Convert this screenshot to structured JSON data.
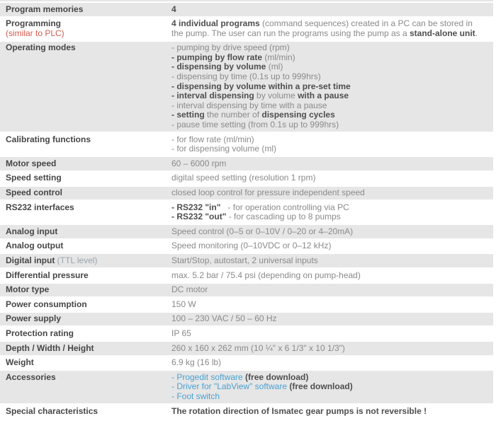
{
  "colors": {
    "shaded_row_bg": "#e6e6e6",
    "label_text": "#464646",
    "value_text": "#8a8a8a",
    "value_bold_text": "#4e4e4e",
    "red_note": "#dc5a4e",
    "teal_note": "#97a5ad",
    "link": "#4aa1d2"
  },
  "table": {
    "rows": [
      {
        "label": [
          [
            {
              "t": "Program memories"
            }
          ]
        ],
        "value": [
          [
            {
              "t": "4",
              "b": true
            }
          ]
        ]
      },
      {
        "label": [
          [
            {
              "t": "Programming"
            }
          ],
          [
            {
              "t": "(similar to PLC)",
              "c": "red"
            }
          ]
        ],
        "value": [
          [
            {
              "t": "4 individual programs",
              "b": true
            },
            {
              "t": " (command sequences) created in a PC can be stored in the pump. The user can run the programs using the pump as a "
            },
            {
              "t": "stand-alone unit",
              "b": true
            },
            {
              "t": "."
            }
          ]
        ]
      },
      {
        "label": [
          [
            {
              "t": "Operating modes"
            }
          ]
        ],
        "value": [
          [
            {
              "t": "- pumping by drive speed (rpm)"
            }
          ],
          [
            {
              "t": "- pumping by flow rate",
              "b": true
            },
            {
              "t": " (ml/min)"
            }
          ],
          [
            {
              "t": "- dispensing by volume",
              "b": true
            },
            {
              "t": " (ml)"
            }
          ],
          [
            {
              "t": "- dispensing by time (0.1s up to 999hrs)"
            }
          ],
          [
            {
              "t": "- dispensing by volume within a pre-set time",
              "b": true
            }
          ],
          [
            {
              "t": "- interval dispensing",
              "b": true
            },
            {
              "t": " by volume "
            },
            {
              "t": "with a pause",
              "b": true
            }
          ],
          [
            {
              "t": "- interval dispensing by time with a pause"
            }
          ],
          [
            {
              "t": "- setting",
              "b": true
            },
            {
              "t": " the number of "
            },
            {
              "t": "dispensing cycles",
              "b": true
            }
          ],
          [
            {
              "t": "- pause time setting (from 0.1s up to 999hrs)"
            }
          ]
        ]
      },
      {
        "label": [
          [
            {
              "t": "Calibrating functions"
            }
          ]
        ],
        "value": [
          [
            {
              "t": "- for flow rate (ml/min)"
            }
          ],
          [
            {
              "t": "- for dispensing volume (ml)"
            }
          ]
        ]
      },
      {
        "label": [
          [
            {
              "t": "Motor speed"
            }
          ]
        ],
        "value": [
          [
            {
              "t": "60 – 6000 rpm"
            }
          ]
        ]
      },
      {
        "label": [
          [
            {
              "t": "Speed setting"
            }
          ]
        ],
        "value": [
          [
            {
              "t": "digital speed setting (resolution 1 rpm)"
            }
          ]
        ]
      },
      {
        "label": [
          [
            {
              "t": "Speed control"
            }
          ]
        ],
        "value": [
          [
            {
              "t": "closed loop control for pressure independent speed"
            }
          ]
        ]
      },
      {
        "label": [
          [
            {
              "t": "RS232 interfaces"
            }
          ]
        ],
        "value": [
          [
            {
              "t": "- RS232 \"in\"",
              "b": true
            },
            {
              "t": "   - for operation controlling via PC"
            }
          ],
          [
            {
              "t": "- RS232 \"out\"",
              "b": true
            },
            {
              "t": " - for cascading up to 8 pumps"
            }
          ]
        ]
      },
      {
        "label": [
          [
            {
              "t": "Analog input"
            }
          ]
        ],
        "value": [
          [
            {
              "t": "Speed control (0–5 or 0–10V / 0–20 or 4–20mA)"
            }
          ]
        ]
      },
      {
        "label": [
          [
            {
              "t": "Analog output"
            }
          ]
        ],
        "value": [
          [
            {
              "t": "Speed monitoring (0–10VDC or 0–12 kHz)"
            }
          ]
        ]
      },
      {
        "label": [
          [
            {
              "t": "Digital input "
            },
            {
              "t": "(TTL level)",
              "c": "teal"
            }
          ]
        ],
        "value": [
          [
            {
              "t": "Start/Stop, autostart, 2 universal inputs"
            }
          ]
        ]
      },
      {
        "label": [
          [
            {
              "t": "Differential pressure"
            }
          ]
        ],
        "value": [
          [
            {
              "t": "max. 5.2 bar / 75.4 psi (depending on pump-head)"
            }
          ]
        ]
      },
      {
        "label": [
          [
            {
              "t": "Motor type"
            }
          ]
        ],
        "value": [
          [
            {
              "t": "DC motor"
            }
          ]
        ]
      },
      {
        "label": [
          [
            {
              "t": "Power consumption"
            }
          ]
        ],
        "value": [
          [
            {
              "t": "150 W"
            }
          ]
        ]
      },
      {
        "label": [
          [
            {
              "t": "Power supply"
            }
          ]
        ],
        "value": [
          [
            {
              "t": "100 – 230 VAC / 50 – 60 Hz"
            }
          ]
        ]
      },
      {
        "label": [
          [
            {
              "t": "Protection rating"
            }
          ]
        ],
        "value": [
          [
            {
              "t": "IP 65"
            }
          ]
        ]
      },
      {
        "label": [
          [
            {
              "t": "Depth / Width / Height"
            }
          ]
        ],
        "value": [
          [
            {
              "t": "260 x 160 x 262 mm (10 ¼\" x 6 1/3\" x 10 1/3\")"
            }
          ]
        ]
      },
      {
        "label": [
          [
            {
              "t": "Weight"
            }
          ]
        ],
        "value": [
          [
            {
              "t": "6.9 kg (16 lb)"
            }
          ]
        ]
      },
      {
        "label": [
          [
            {
              "t": "Accessories"
            }
          ]
        ],
        "value": [
          [
            {
              "t": "- Progedit software",
              "link": true,
              "name": "link-progedit-software"
            },
            {
              "t": " (free download)",
              "b": true
            }
          ],
          [
            {
              "t": "- Driver for \"LabView\" software",
              "link": true,
              "name": "link-labview-driver"
            },
            {
              "t": " (free download)",
              "b": true
            }
          ],
          [
            {
              "t": "- Foot switch",
              "link": true,
              "name": "link-foot-switch"
            }
          ]
        ]
      },
      {
        "label": [
          [
            {
              "t": "Special characteristics"
            }
          ]
        ],
        "value": [
          [
            {
              "t": "The rotation direction of Ismatec gear pumps is not reversible !",
              "b": true
            }
          ]
        ]
      }
    ]
  }
}
